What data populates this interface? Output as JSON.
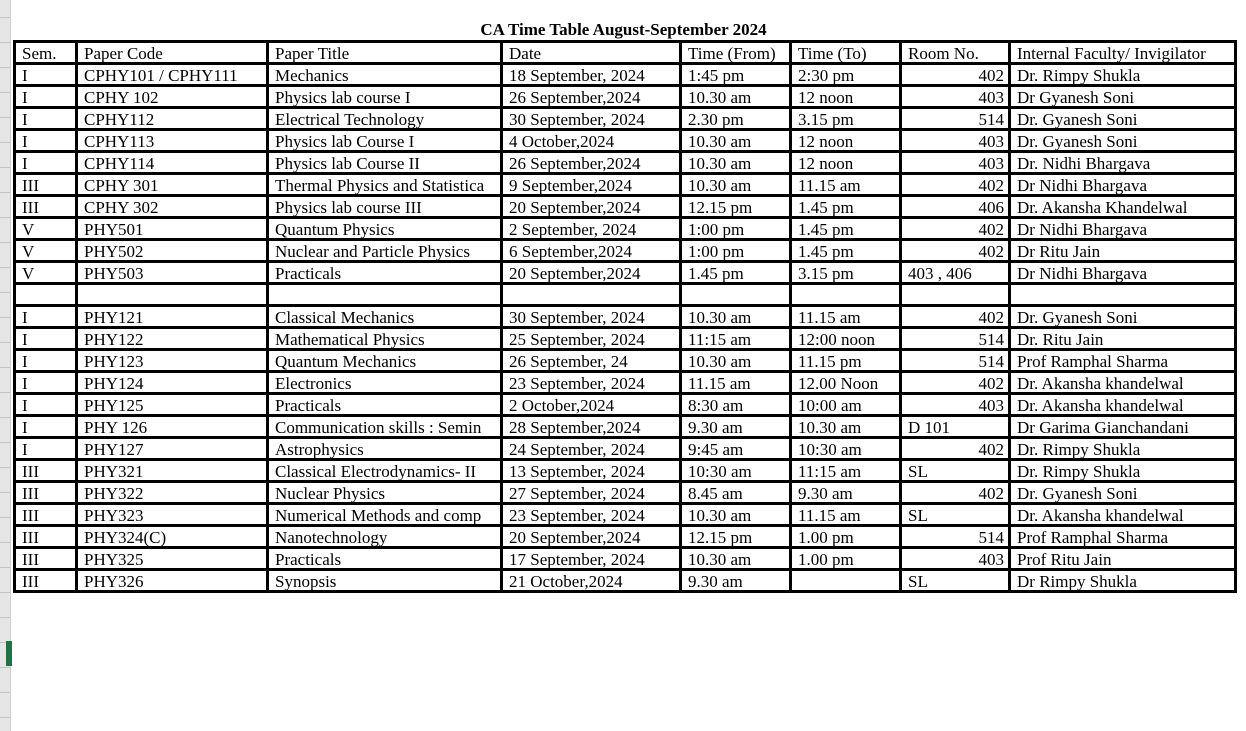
{
  "title": "CA Time Table August-September 2024",
  "headers": [
    "Sem.",
    "Paper Code",
    "Paper Title",
    "Date",
    "Time (From)",
    "Time (To)",
    "Room No.",
    "Internal Faculty/ Invigilator"
  ],
  "rows": [
    [
      "I",
      "CPHY101 / CPHY111",
      "Mechanics",
      "18 September, 2024",
      "1:45 pm",
      "2:30 pm",
      "402",
      "Dr. Rimpy Shukla"
    ],
    [
      "I",
      "CPHY 102",
      "Physics lab course I",
      "26 September,2024",
      "10.30 am",
      "12 noon",
      "403",
      "Dr Gyanesh Soni"
    ],
    [
      "I",
      "CPHY112",
      "Electrical Technology",
      "30 September, 2024",
      "2.30 pm",
      "3.15 pm",
      "514",
      "Dr. Gyanesh Soni"
    ],
    [
      "I",
      "CPHY113",
      "Physics lab Course I",
      "4 October,2024",
      "10.30 am",
      "12 noon",
      "403",
      "Dr. Gyanesh Soni"
    ],
    [
      "I",
      "CPHY114",
      "Physics lab Course II",
      "26 September,2024",
      "10.30 am",
      "12 noon",
      "403",
      "Dr. Nidhi Bhargava"
    ],
    [
      "III",
      "CPHY 301",
      "Thermal Physics and Statistica",
      "9 September,2024",
      "10.30 am",
      "11.15 am",
      "402",
      "Dr Nidhi Bhargava"
    ],
    [
      "III",
      "CPHY 302",
      "Physics lab course III",
      "20 September,2024",
      "12.15 pm",
      "1.45 pm",
      "406",
      "Dr. Akansha Khandelwal"
    ],
    [
      "V",
      "PHY501",
      "Quantum Physics",
      "2 September, 2024",
      "1:00 pm",
      "1.45 pm",
      "402",
      "Dr Nidhi Bhargava"
    ],
    [
      "V",
      "PHY502",
      "Nuclear and Particle Physics",
      "6 September,2024",
      "1:00 pm",
      "1.45 pm",
      "402",
      "Dr Ritu Jain"
    ],
    [
      "V",
      "PHY503",
      "Practicals",
      "20 September,2024",
      "1.45 pm",
      "3.15 pm",
      "403 , 406",
      "Dr Nidhi Bhargava"
    ],
    [
      "",
      "",
      "",
      "",
      "",
      "",
      "",
      ""
    ],
    [
      "I",
      "PHY121",
      "Classical Mechanics",
      "30 September, 2024",
      "10.30 am",
      "11.15 am",
      "402",
      "Dr. Gyanesh Soni"
    ],
    [
      "I",
      "PHY122",
      "Mathematical Physics",
      "25 September, 2024",
      "11:15 am",
      "12:00 noon",
      "514",
      "Dr. Ritu Jain"
    ],
    [
      "I",
      "PHY123",
      "Quantum Mechanics",
      "26 September, 24",
      "10.30 am",
      "11.15 pm",
      "514",
      "Prof Ramphal Sharma"
    ],
    [
      "I",
      "PHY124",
      "Electronics",
      "23 September, 2024",
      "11.15 am",
      "12.00 Noon",
      "402",
      "Dr. Akansha khandelwal"
    ],
    [
      "I",
      "PHY125",
      "Practicals",
      "2 October,2024",
      "8:30 am",
      "10:00 am",
      "403",
      "Dr. Akansha khandelwal"
    ],
    [
      "I",
      "PHY 126",
      "Communication skills : Semin",
      "28 September,2024",
      "9.30 am",
      "10.30 am",
      "D 101",
      "Dr Garima Gianchandani"
    ],
    [
      "I",
      "PHY127",
      "Astrophysics",
      "24 September, 2024",
      "9:45 am",
      "10:30 am",
      "402",
      "Dr. Rimpy Shukla"
    ],
    [
      "III",
      "PHY321",
      "Classical Electrodynamics- II",
      "13 September, 2024",
      "10:30 am",
      "11:15 am",
      "SL",
      "Dr. Rimpy Shukla"
    ],
    [
      "III",
      "PHY322",
      "Nuclear Physics",
      "27 September, 2024",
      "8.45 am",
      "9.30 am",
      "402",
      "Dr. Gyanesh Soni"
    ],
    [
      "III",
      "PHY323",
      "Numerical Methods and comp",
      "23 September, 2024",
      "10.30 am",
      "11.15 am",
      "SL",
      "Dr. Akansha khandelwal"
    ],
    [
      "III",
      "PHY324(C)",
      "Nanotechnology",
      "20 September,2024",
      "12.15 pm",
      "1.00 pm",
      "514",
      "Prof Ramphal Sharma"
    ],
    [
      "III",
      "PHY325",
      "Practicals",
      "17 September, 2024",
      "10.30 am",
      "1.00 pm",
      "403",
      "Prof Ritu Jain"
    ],
    [
      "III",
      "PHY326",
      "Synopsis",
      "21 October,2024",
      "9.30 am",
      "",
      "SL",
      "Dr Rimpy Shukla"
    ]
  ],
  "selected_row_color": "#217346"
}
